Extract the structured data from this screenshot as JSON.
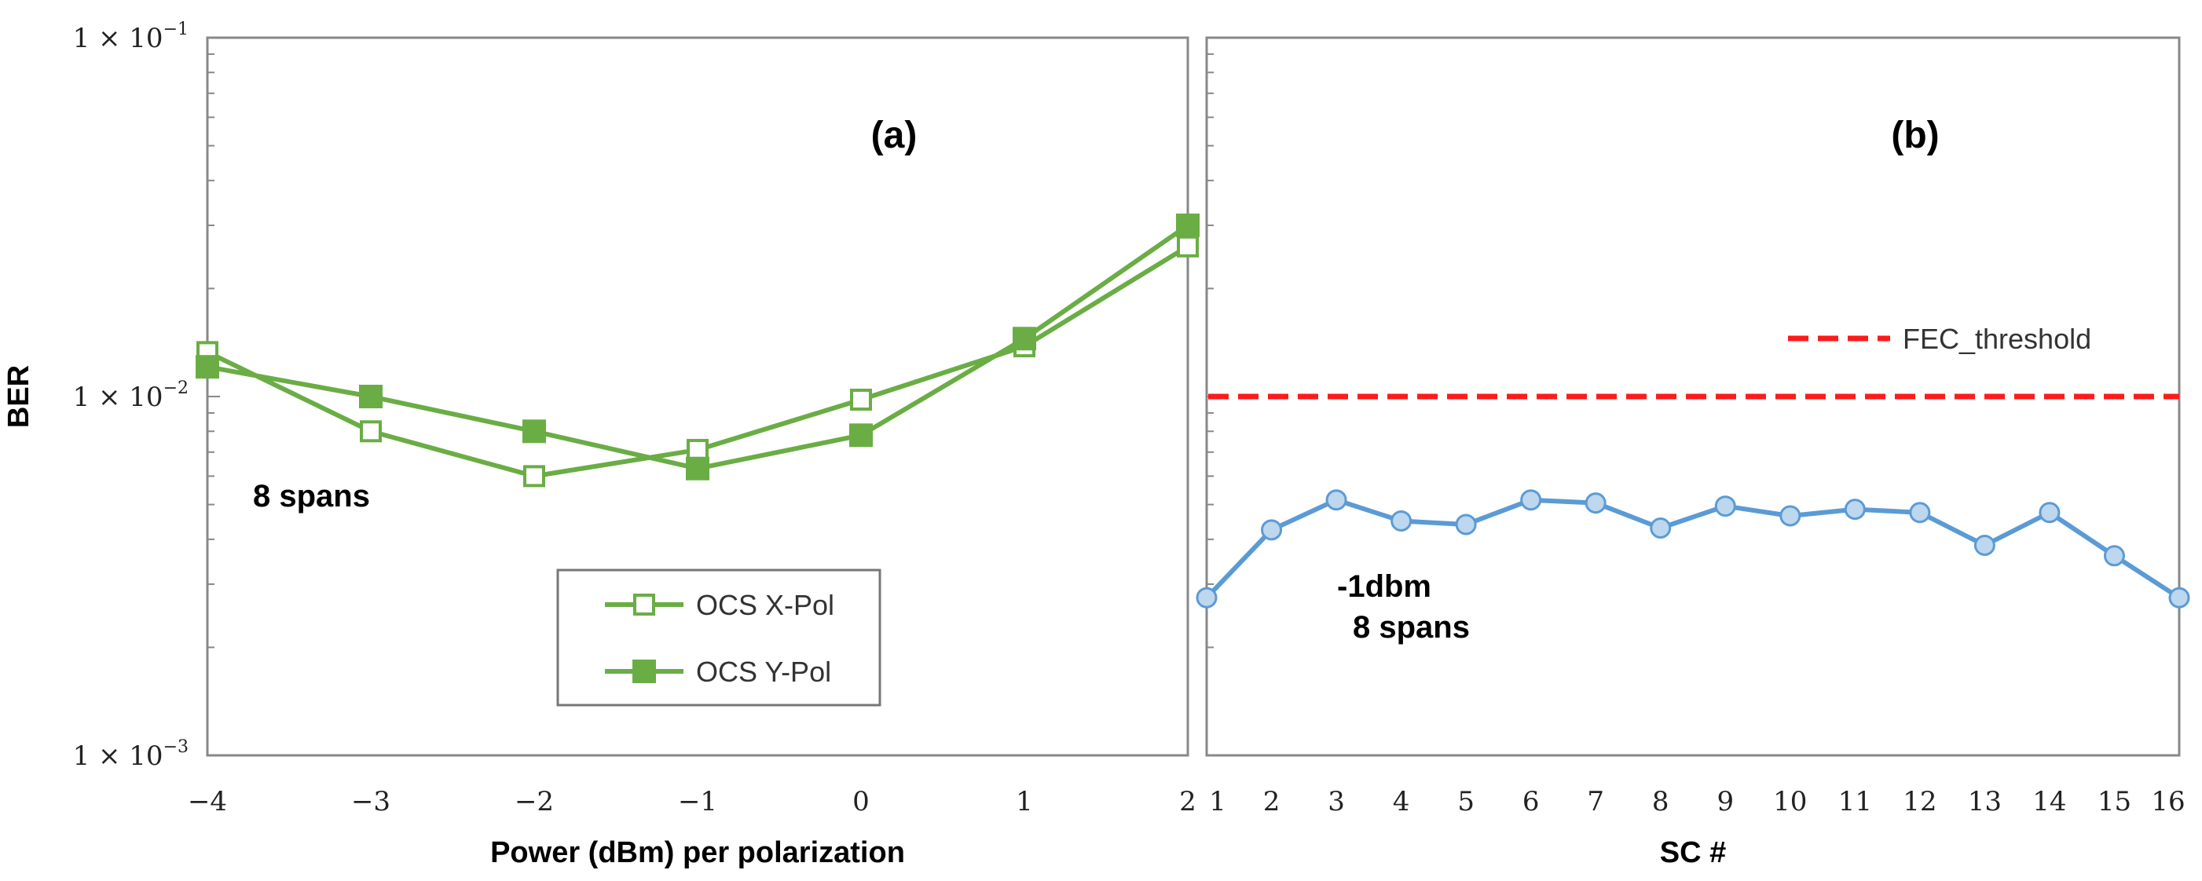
{
  "chart_data": [
    {
      "type": "line",
      "panel_label": "(a)",
      "xlabel": "Power (dBm) per polarization",
      "ylabel": "BER",
      "yscale": "log",
      "ylim": [
        0.001,
        0.1
      ],
      "xlim": [
        -4,
        2
      ],
      "x": [
        -4,
        -3,
        -2,
        -1,
        0,
        1,
        2
      ],
      "x_tick_labels": [
        "−4",
        "−3",
        "−2",
        "−1",
        "0",
        "1",
        "2"
      ],
      "y_tick_labels": [
        {
          "value": 0.1,
          "base": "1 × 10",
          "exp": "−1"
        },
        {
          "value": 0.01,
          "base": "1 × 10",
          "exp": "−2"
        },
        {
          "value": 0.001,
          "base": "1 × 10",
          "exp": "−3"
        }
      ],
      "series": [
        {
          "name": "OCS X-Pol",
          "marker": "hollow-square",
          "color": "#6aad45",
          "values": [
            0.0133,
            0.008,
            0.006,
            0.0071,
            0.0098,
            0.0138,
            0.0262
          ]
        },
        {
          "name": "OCS Y-Pol",
          "marker": "filled-square",
          "color": "#6aad45",
          "values": [
            0.0121,
            0.01,
            0.008,
            0.0063,
            0.0078,
            0.0145,
            0.03
          ]
        }
      ],
      "annotations": [
        "8 spans"
      ],
      "legend": "lower-center"
    },
    {
      "type": "line",
      "panel_label": "(b)",
      "xlabel": "SC #",
      "yscale": "log",
      "ylim": [
        0.001,
        0.1
      ],
      "x": [
        1,
        2,
        3,
        4,
        5,
        6,
        7,
        8,
        9,
        10,
        11,
        12,
        13,
        14,
        15,
        16
      ],
      "series": [
        {
          "name": "",
          "marker": "circle",
          "color": "#5b9bd5",
          "values": [
            0.00275,
            0.00425,
            0.00515,
            0.0045,
            0.0044,
            0.00515,
            0.00505,
            0.0043,
            0.00495,
            0.00465,
            0.00485,
            0.00475,
            0.00385,
            0.00475,
            0.0036,
            0.00275
          ]
        }
      ],
      "threshold": {
        "name": "FEC_threshold",
        "value": 0.01,
        "color": "#ff1a1a",
        "style": "dashed"
      },
      "annotations": [
        "-1dbm",
        "8 spans"
      ],
      "legend": "top-right"
    }
  ]
}
